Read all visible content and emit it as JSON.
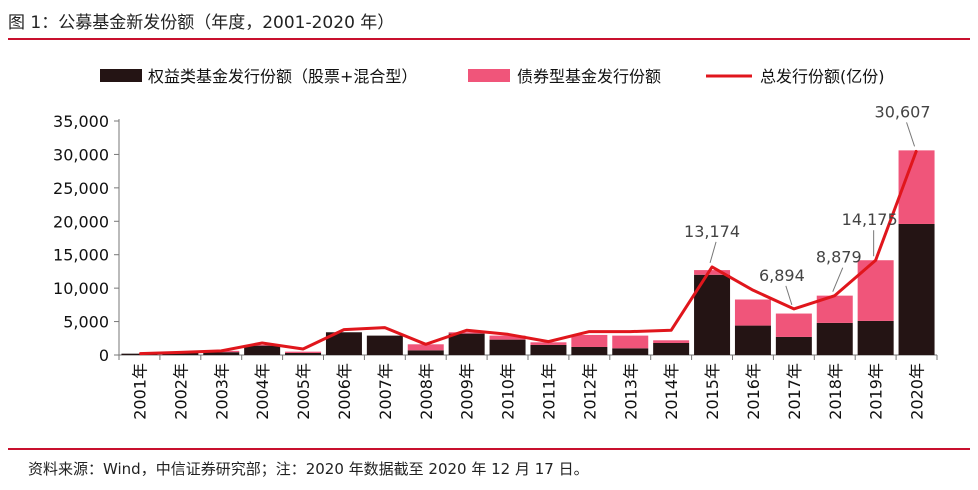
{
  "header": {
    "title": "图 1：公募基金新发份额（年度，2001-2020 年）"
  },
  "footer": {
    "source": "资料来源：Wind，中信证券研究部；注：2020 年数据截至 2020 年 12 月 17 日。"
  },
  "colors": {
    "equity": "#241414",
    "bond": "#f0557a",
    "total": "#e0161c",
    "rule": "#c8102e"
  },
  "chart_data": {
    "type": "bar",
    "stacked": true,
    "categories": [
      "2001年",
      "2002年",
      "2003年",
      "2004年",
      "2005年",
      "2006年",
      "2007年",
      "2008年",
      "2009年",
      "2010年",
      "2011年",
      "2012年",
      "2013年",
      "2014年",
      "2015年",
      "2016年",
      "2017年",
      "2018年",
      "2019年",
      "2020年"
    ],
    "series": [
      {
        "name": "权益类基金发行份额（股票+混合型）",
        "kind": "bar",
        "values": [
          200,
          350,
          420,
          1400,
          300,
          3400,
          2900,
          700,
          3200,
          2300,
          1500,
          1200,
          1000,
          1800,
          12000,
          4400,
          2700,
          4800,
          5100,
          19600
        ]
      },
      {
        "name": "债券型基金发行份额",
        "kind": "bar",
        "values": [
          0,
          50,
          200,
          100,
          200,
          0,
          0,
          900,
          200,
          600,
          400,
          1800,
          1900,
          400,
          700,
          3900,
          3500,
          4079,
          9075,
          11007
        ]
      },
      {
        "name": "总发行份额(亿份)",
        "kind": "line",
        "values": [
          200,
          400,
          620,
          1800,
          900,
          3800,
          4100,
          1600,
          3700,
          3100,
          2000,
          3500,
          3500,
          3700,
          13174,
          9700,
          6894,
          8879,
          14175,
          30607
        ]
      }
    ],
    "yticks": [
      "0",
      "5,000",
      "10,000",
      "15,000",
      "20,000",
      "25,000",
      "30,000",
      "35,000"
    ],
    "ylim": [
      0,
      35000
    ],
    "annotations": [
      {
        "category": "2015年",
        "label": "13,174"
      },
      {
        "category": "2017年",
        "label": "6,894"
      },
      {
        "category": "2018年",
        "label": "8,879"
      },
      {
        "category": "2019年",
        "label": "14,175"
      },
      {
        "category": "2020年",
        "label": "30,607"
      }
    ],
    "legend_position": "top"
  }
}
